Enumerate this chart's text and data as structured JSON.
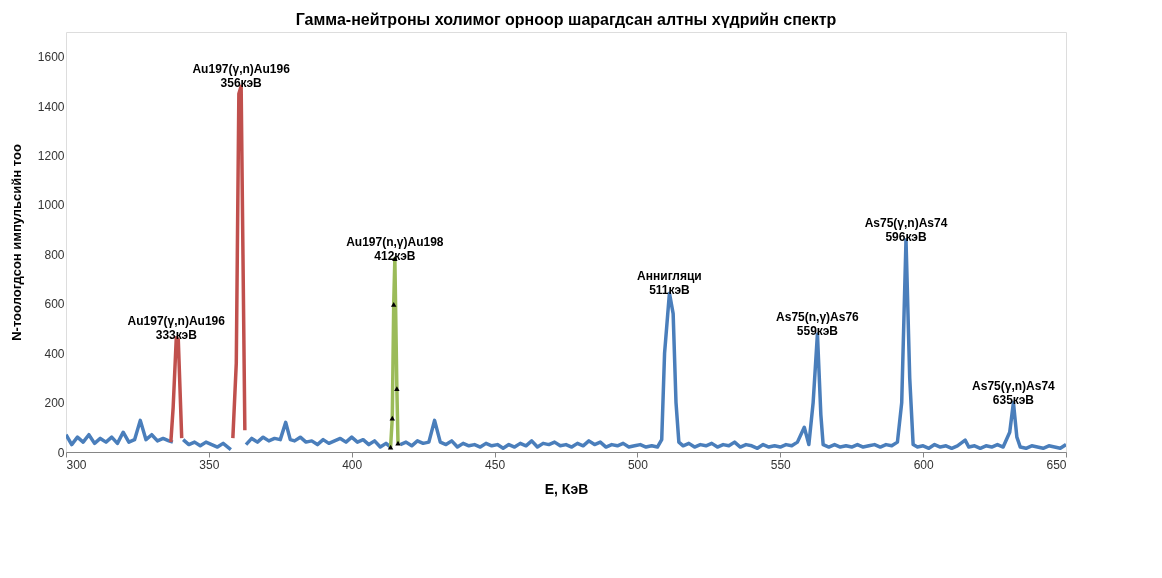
{
  "chart_data": {
    "type": "line",
    "title": "Гамма-нейтроны  холимог орноор шарагдсан алтны хүдрийн спектр",
    "xlabel": "E, КэВ",
    "ylabel": "N-тоологдсон  импульсийн тоо",
    "xlim": [
      300,
      650
    ],
    "xticks": [
      300,
      350,
      400,
      450,
      500,
      550,
      600,
      650
    ],
    "ylim": [
      0,
      1700
    ],
    "yticks": [
      0,
      200,
      400,
      600,
      800,
      1000,
      1200,
      1400,
      1600
    ],
    "grid": false,
    "marker": "none",
    "line_style": "solid",
    "series": [
      {
        "color": "#4a7ebb",
        "x": [
          300,
          302,
          304,
          306,
          308,
          310,
          312,
          314,
          316,
          318,
          320,
          322,
          324,
          326,
          328,
          330,
          332,
          334,
          336,
          337.4,
          339,
          341,
          343,
          345,
          347,
          349,
          351,
          353,
          355,
          357.7,
          360,
          363,
          365,
          367,
          369,
          371,
          373,
          375,
          376.9,
          378.5,
          380,
          382,
          384,
          386,
          388,
          390,
          392,
          394,
          396,
          398,
          400,
          402,
          404,
          406,
          408,
          410,
          412,
          413.6,
          415,
          417,
          419,
          421,
          423,
          425,
          427,
          429,
          431,
          433,
          435,
          437,
          439,
          441,
          443,
          445,
          447,
          449,
          451,
          453,
          455,
          457,
          459,
          461,
          463,
          465,
          467,
          469,
          471,
          473,
          475,
          477,
          479,
          481,
          483,
          485,
          487,
          489,
          491,
          493,
          495,
          497,
          499,
          501,
          503,
          505,
          507,
          508.5,
          509.5,
          511.2,
          512.5,
          513.5,
          514.5,
          516,
          518,
          520,
          522,
          524,
          526,
          528,
          530,
          532,
          534,
          536,
          538,
          540,
          542,
          544,
          546,
          548,
          550,
          552,
          554,
          556,
          558.4,
          560,
          561.5,
          563,
          564.2,
          565,
          567,
          569,
          571,
          573,
          575,
          577,
          579,
          581,
          583,
          585,
          587,
          589,
          591,
          592.5,
          594,
          595.3,
          596.5,
          598,
          600,
          602,
          604,
          606,
          608,
          610,
          612,
          614.7,
          616,
          618,
          620,
          622,
          624,
          626,
          628,
          630.3,
          631.6,
          632.8,
          634,
          636,
          638,
          640,
          642,
          644,
          646,
          648,
          650
        ],
        "values": [
          70,
          30,
          60,
          40,
          70,
          35,
          55,
          40,
          60,
          35,
          80,
          40,
          50,
          128,
          50,
          70,
          45,
          55,
          45,
          40,
          null,
          50,
          30,
          40,
          25,
          40,
          30,
          20,
          35,
          10,
          null,
          30,
          55,
          40,
          60,
          45,
          55,
          50,
          120,
          50,
          45,
          60,
          40,
          45,
          30,
          50,
          35,
          45,
          55,
          40,
          60,
          40,
          50,
          30,
          45,
          20,
          35,
          20,
          null,
          30,
          40,
          25,
          45,
          35,
          40,
          128,
          40,
          30,
          45,
          20,
          35,
          25,
          30,
          20,
          35,
          25,
          30,
          15,
          30,
          20,
          35,
          25,
          45,
          20,
          35,
          30,
          40,
          25,
          30,
          20,
          35,
          25,
          45,
          30,
          40,
          20,
          30,
          25,
          35,
          20,
          25,
          30,
          20,
          25,
          20,
          50,
          400,
          643,
          560,
          200,
          40,
          25,
          35,
          20,
          30,
          25,
          35,
          20,
          30,
          25,
          40,
          20,
          30,
          25,
          15,
          30,
          20,
          25,
          20,
          30,
          25,
          40,
          100,
          30,
          200,
          478,
          150,
          30,
          20,
          30,
          20,
          25,
          20,
          30,
          20,
          25,
          30,
          20,
          30,
          25,
          40,
          200,
          859,
          300,
          30,
          20,
          25,
          15,
          30,
          20,
          25,
          15,
          25,
          48,
          20,
          25,
          15,
          25,
          20,
          30,
          20,
          80,
          200,
          60,
          20,
          15,
          25,
          20,
          15,
          25,
          20,
          15,
          30
        ]
      },
      {
        "color": "#c0504d",
        "x": [
          336.7,
          337.5,
          338.6,
          339.3,
          340.5,
          348,
          358.4,
          359.6,
          360.5,
          361.3,
          362.6
        ],
        "values": [
          40,
          180,
          462,
          455,
          56,
          null,
          56,
          360,
          1450,
          1480,
          88
        ]
      },
      {
        "color": "#9bbb59",
        "marker": "triangle",
        "x": [
          413.6,
          414.2,
          414.7,
          415.1,
          415.8,
          416.2
        ],
        "values": [
          20,
          137,
          598,
          783,
          257,
          36
        ]
      }
    ],
    "annotations": [
      {
        "text": "Au197(γ,n)Au196\n333кэВ",
        "x": 338.6,
        "y": 462
      },
      {
        "text": "Au197(γ,n)Au196\n356кэВ",
        "x": 361.3,
        "y": 1480
      },
      {
        "text": "Au197(n,γ)Au198\n412кэВ",
        "x": 415.1,
        "y": 783
      },
      {
        "text": "Аннигляци\n511кэВ",
        "x": 511.2,
        "y": 643
      },
      {
        "text": "As75(n,γ)As76\n559кэВ",
        "x": 563,
        "y": 478
      },
      {
        "text": "As75(γ,n)As74\n596кэВ",
        "x": 594,
        "y": 859
      },
      {
        "text": "As75(γ,n)As74\n635кэВ",
        "x": 631.6,
        "y": 200
      }
    ]
  }
}
